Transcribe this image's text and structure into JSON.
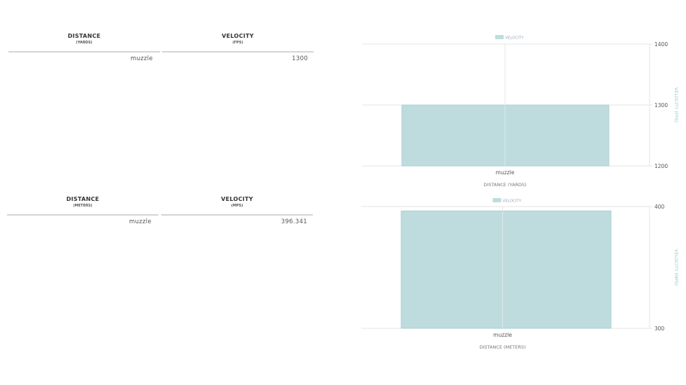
{
  "tables": [
    {
      "headers": [
        {
          "title": "DISTANCE",
          "unit": "(YARDS)"
        },
        {
          "title": "VELOCITY",
          "unit": "(FPS)"
        }
      ],
      "rows": [
        [
          "muzzle",
          "1300"
        ]
      ]
    },
    {
      "headers": [
        {
          "title": "DISTANCE",
          "unit": "(METERS)"
        },
        {
          "title": "VELOCITY",
          "unit": "(MPS)"
        }
      ],
      "rows": [
        [
          "muzzle",
          "396.341"
        ]
      ]
    }
  ],
  "chart_data": [
    {
      "type": "bar",
      "categories": [
        "muzzle"
      ],
      "series": [
        {
          "name": "VELOCITY",
          "values": [
            1300
          ]
        }
      ],
      "xlabel": "DISTANCE (YARDS)",
      "ylabel": "VELOCITY (FPS)",
      "ylim": [
        1200,
        1400
      ],
      "yticks": [
        "1200",
        "1300",
        "1400"
      ],
      "legend": "top",
      "grid": true,
      "color": "#bedcdd"
    },
    {
      "type": "bar",
      "categories": [
        "muzzle"
      ],
      "series": [
        {
          "name": "VELOCITY",
          "values": [
            396.341
          ]
        }
      ],
      "xlabel": "DISTANCE (METERS)",
      "ylabel": "VELOCITY (MPS)",
      "ylim": [
        300,
        400
      ],
      "yticks": [
        "300",
        "400"
      ],
      "legend": "top",
      "grid": true,
      "color": "#bedcdd"
    }
  ]
}
